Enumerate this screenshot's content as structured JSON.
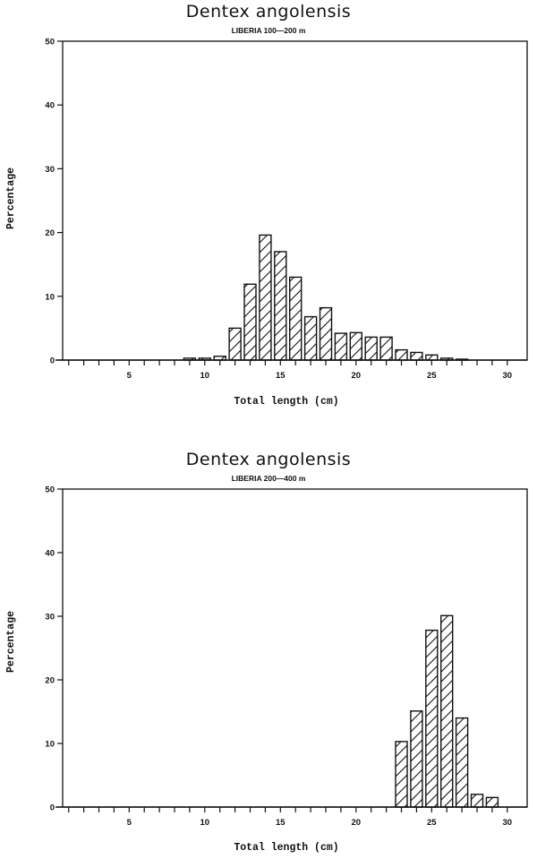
{
  "chart_data": [
    {
      "type": "bar",
      "title": "Dentex angolensis",
      "subtitle": "LIBERIA  100—200 m",
      "xlabel": "Total length (cm)",
      "ylabel": "Percentage",
      "xlim": [
        0,
        30
      ],
      "ylim": [
        0,
        50
      ],
      "xticks": [
        5,
        10,
        15,
        20,
        25,
        30
      ],
      "yticks": [
        0,
        10,
        20,
        30,
        40,
        50
      ],
      "grid": false,
      "legend": null,
      "bar_style": "diagonal hatch",
      "categories": [
        9,
        10,
        11,
        12,
        13,
        14,
        15,
        16,
        17,
        18,
        19,
        20,
        21,
        22,
        23,
        24,
        25,
        26,
        27
      ],
      "values": [
        0.3,
        0.3,
        0.6,
        5.0,
        11.9,
        19.6,
        17.0,
        13.0,
        6.8,
        8.2,
        4.2,
        4.3,
        3.6,
        3.6,
        1.6,
        1.2,
        0.8,
        0.3,
        0.1
      ]
    },
    {
      "type": "bar",
      "title": "Dentex angolensis",
      "subtitle": "LIBERIA  200—400 m",
      "xlabel": "Total length (cm)",
      "ylabel": "Percentage",
      "xlim": [
        0,
        30
      ],
      "ylim": [
        0,
        50
      ],
      "xticks": [
        5,
        10,
        15,
        20,
        25,
        30
      ],
      "yticks": [
        0,
        10,
        20,
        30,
        40,
        50
      ],
      "grid": false,
      "legend": null,
      "bar_style": "diagonal hatch",
      "categories": [
        23,
        24,
        25,
        26,
        27,
        28,
        29
      ],
      "values": [
        10.3,
        15.1,
        27.8,
        30.1,
        14.0,
        2.0,
        1.5
      ]
    }
  ],
  "charts": [
    {
      "title": "Dentex angolensis",
      "subtitle": "LIBERIA  100—200 m",
      "xlabel": "Total length (cm)",
      "ylabel": "Percentage"
    },
    {
      "title": "Dentex angolensis",
      "subtitle": "LIBERIA  200—400 m",
      "xlabel": "Total length (cm)",
      "ylabel": "Percentage"
    }
  ]
}
